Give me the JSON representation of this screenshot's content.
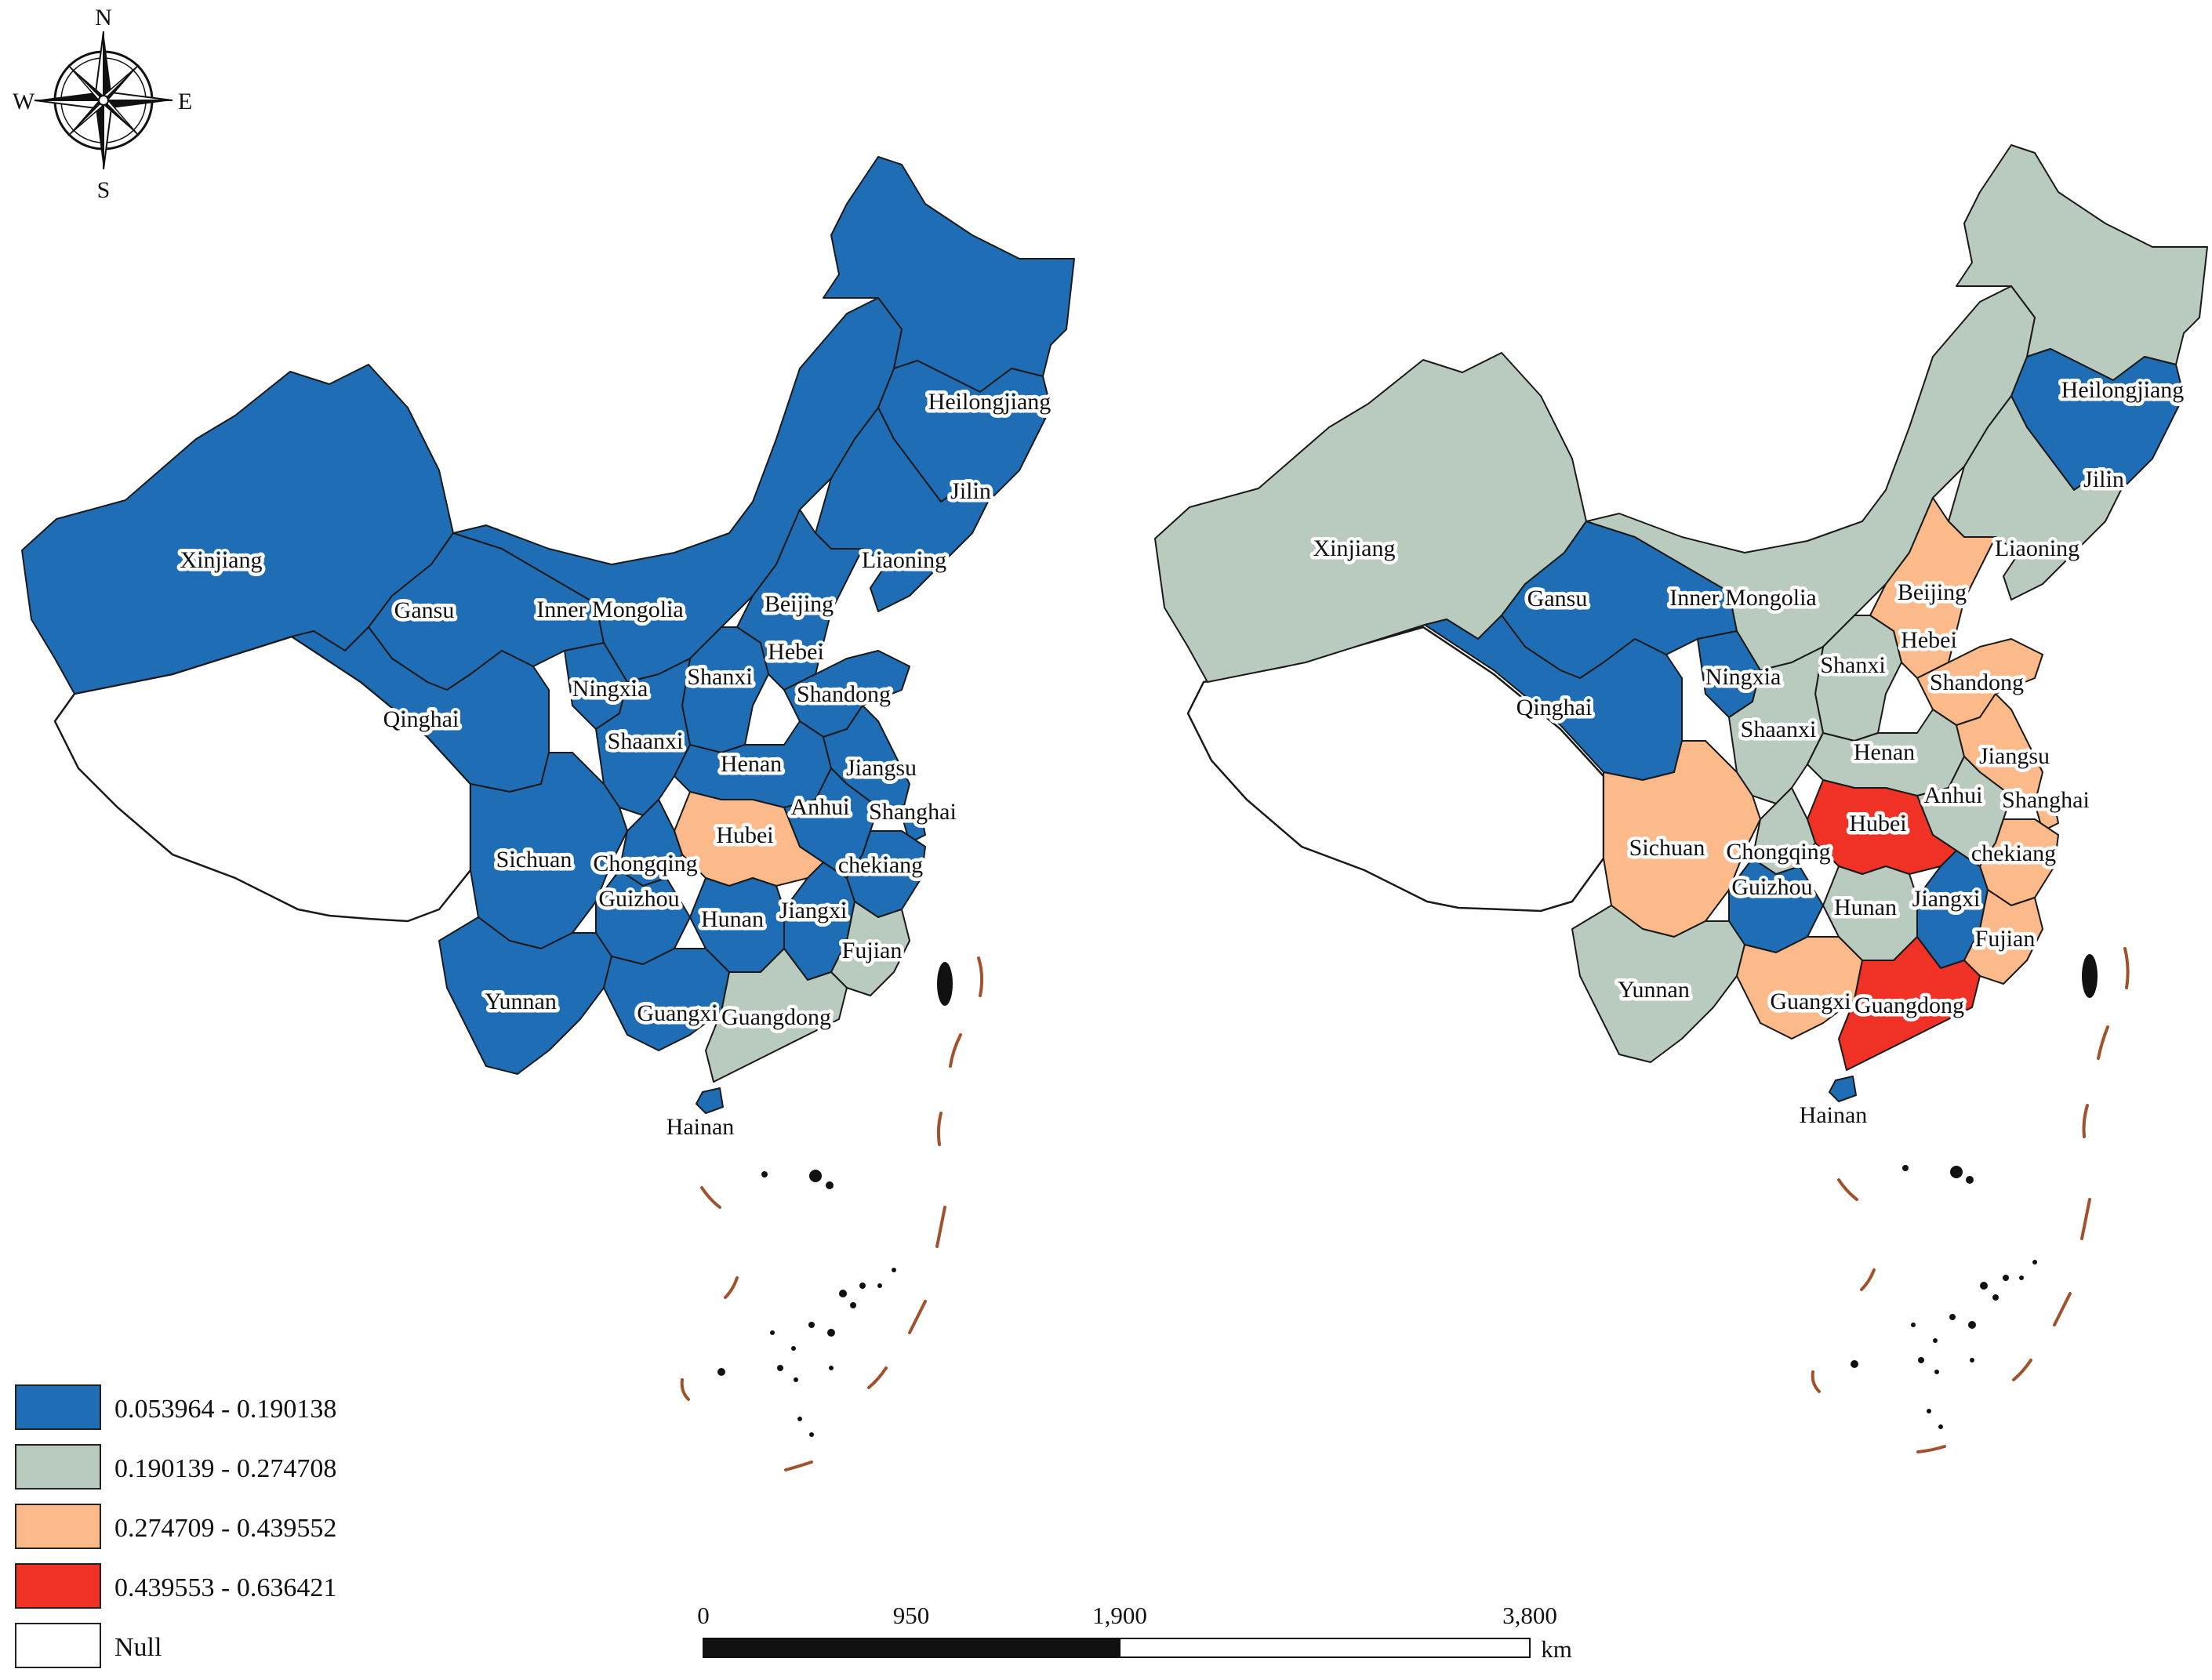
{
  "colors": {
    "class1": "#1f6eb5",
    "class2": "#b9cbbe",
    "class3": "#fcb98a",
    "class4": "#f03226",
    "null": "#ffffff",
    "boundary_dash": "#a0522d"
  },
  "compass": {
    "north": "N",
    "south": "S",
    "east": "E",
    "west": "W",
    "icon": "compass-rose-icon"
  },
  "legend": [
    {
      "label": "0.053964 - 0.190138",
      "color": "#1f6eb5"
    },
    {
      "label": "0.190139 - 0.274708",
      "color": "#b9cbbe"
    },
    {
      "label": "0.274709 - 0.439552",
      "color": "#fcb98a"
    },
    {
      "label": "0.439553 - 0.636421",
      "color": "#f03226"
    },
    {
      "label": "Null",
      "color": "#ffffff"
    }
  ],
  "scale_bar": {
    "ticks": [
      "0",
      "950",
      "1,900",
      "3,800"
    ],
    "unit": "km"
  },
  "maps": [
    {
      "name": "left",
      "provinces": [
        {
          "name": "Heilongjiang",
          "class": 1
        },
        {
          "name": "Jilin",
          "class": 1
        },
        {
          "name": "Liaoning",
          "class": 1
        },
        {
          "name": "Xinjiang",
          "class": 1
        },
        {
          "name": "Gansu",
          "class": 1
        },
        {
          "name": "Inner Mongolia",
          "class": 1
        },
        {
          "name": "Beijing",
          "class": 1
        },
        {
          "name": "Hebei",
          "class": 1
        },
        {
          "name": "Shanxi",
          "class": 1
        },
        {
          "name": "Shandong",
          "class": 1
        },
        {
          "name": "Ningxia",
          "class": 1
        },
        {
          "name": "Qinghai",
          "class": 1
        },
        {
          "name": "Shaanxi",
          "class": 1
        },
        {
          "name": "Henan",
          "class": 1
        },
        {
          "name": "Jiangsu",
          "class": 1
        },
        {
          "name": "Anhui",
          "class": 1
        },
        {
          "name": "Shanghai",
          "class": 1
        },
        {
          "name": "Hubei",
          "class": 3
        },
        {
          "name": "Sichuan",
          "class": 1
        },
        {
          "name": "Chongqing",
          "class": 1
        },
        {
          "name": "chekiang",
          "class": 1
        },
        {
          "name": "Hunan",
          "class": 1
        },
        {
          "name": "Jiangxi",
          "class": 1
        },
        {
          "name": "Guizhou",
          "class": 1
        },
        {
          "name": "Fujian",
          "class": 2
        },
        {
          "name": "Yunnan",
          "class": 1
        },
        {
          "name": "Guangxi",
          "class": 1
        },
        {
          "name": "Guangdong",
          "class": 2
        },
        {
          "name": "Hainan",
          "class": 1
        }
      ]
    },
    {
      "name": "right",
      "provinces": [
        {
          "name": "Heilongjiang",
          "class": 2
        },
        {
          "name": "Jilin",
          "class": 1
        },
        {
          "name": "Liaoning",
          "class": 2
        },
        {
          "name": "Xinjiang",
          "class": 2
        },
        {
          "name": "Gansu",
          "class": 1
        },
        {
          "name": "Inner Mongolia",
          "class": 2
        },
        {
          "name": "Beijing",
          "class": 3
        },
        {
          "name": "Hebei",
          "class": 3
        },
        {
          "name": "Shanxi",
          "class": 2
        },
        {
          "name": "Shandong",
          "class": 3
        },
        {
          "name": "Ningxia",
          "class": 1
        },
        {
          "name": "Qinghai",
          "class": 1
        },
        {
          "name": "Shaanxi",
          "class": 2
        },
        {
          "name": "Henan",
          "class": 2
        },
        {
          "name": "Jiangsu",
          "class": 3
        },
        {
          "name": "Anhui",
          "class": 2
        },
        {
          "name": "Shanghai",
          "class": 3
        },
        {
          "name": "Hubei",
          "class": 4
        },
        {
          "name": "Sichuan",
          "class": 3
        },
        {
          "name": "Chongqing",
          "class": 2
        },
        {
          "name": "chekiang",
          "class": 3
        },
        {
          "name": "Hunan",
          "class": 2
        },
        {
          "name": "Jiangxi",
          "class": 1
        },
        {
          "name": "Guizhou",
          "class": 1
        },
        {
          "name": "Fujian",
          "class": 3
        },
        {
          "name": "Yunnan",
          "class": 2
        },
        {
          "name": "Guangxi",
          "class": 3
        },
        {
          "name": "Guangdong",
          "class": 4
        },
        {
          "name": "Hainan",
          "class": 1
        }
      ]
    }
  ]
}
